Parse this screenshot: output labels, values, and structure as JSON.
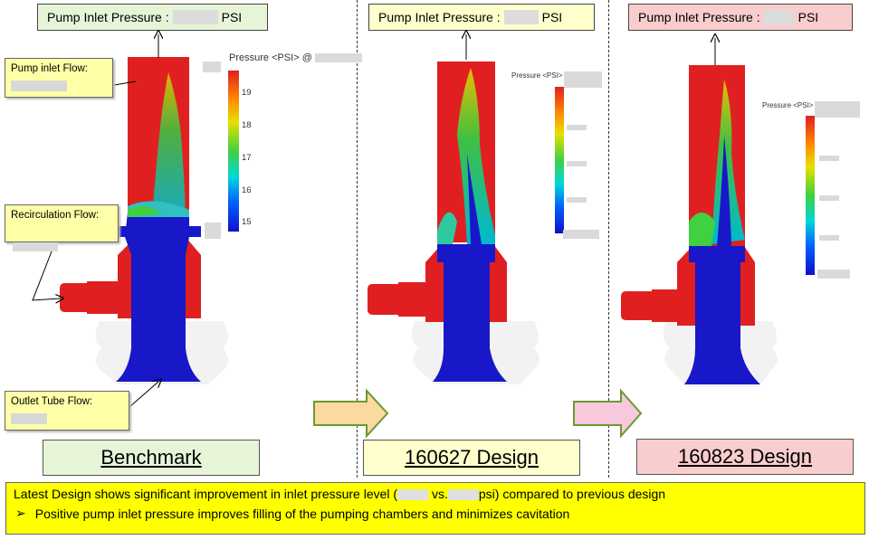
{
  "panels": [
    {
      "pressure_label": "Pump Inlet Pressure :",
      "unit": "PSI",
      "design_label": "Benchmark",
      "box_color": "#e6f4d8",
      "pressure_box_color": "#e6f4d8"
    },
    {
      "pressure_label": "Pump Inlet Pressure :",
      "unit": "PSI",
      "design_label": "160627 Design",
      "box_color": "#ffffcc",
      "pressure_box_color": "#ffffcc"
    },
    {
      "pressure_label": "Pump Inlet Pressure :",
      "unit": "PSI",
      "design_label": "160823 Design",
      "box_color": "#f9cdcd",
      "pressure_box_color": "#f9cdcd"
    }
  ],
  "callouts": {
    "pump_inlet_flow": "Pump inlet Flow:",
    "recirculation_flow": "Recirculation Flow:",
    "outlet_tube_flow": "Outlet Tube Flow:"
  },
  "legends": {
    "main_title": "Pressure <PSI> @",
    "small_title": "Pressure <PSI>",
    "ticks": [
      "19",
      "18",
      "17",
      "16",
      "15"
    ]
  },
  "summary": {
    "line1_a": "Latest Design shows significant improvement in inlet pressure level (",
    "line1_b": " vs.",
    "line1_c": "psi) compared to previous design",
    "line2": "Positive pump inlet pressure improves filling of the pumping chambers and minimizes cavitation",
    "background": "#ffff00"
  },
  "arrows": {
    "arrow1_fill": "#fcd9a0",
    "arrow2_fill": "#f8c8dc",
    "arrow_stroke": "#6a9a30"
  },
  "colors": {
    "high": "#e02020",
    "low": "#1010c8"
  }
}
